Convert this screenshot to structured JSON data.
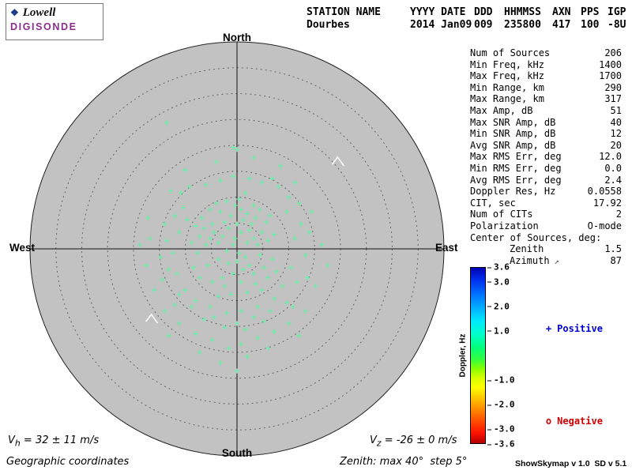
{
  "logo": {
    "brand_top": "Lowell",
    "brand_bottom": "DIGISONDE"
  },
  "header": {
    "columns": [
      {
        "label": "STATION NAME",
        "value": "Dourbes"
      },
      {
        "label": "YYYY DATE",
        "value": "2014 Jan09"
      },
      {
        "label": "DDD",
        "value": "009"
      },
      {
        "label": "HHMMSS",
        "value": "235800"
      },
      {
        "label": "AXN",
        "value": "417"
      },
      {
        "label": "PPS",
        "value": "100"
      },
      {
        "label": "IGP",
        "value": "-8U"
      }
    ]
  },
  "compass": {
    "north": "North",
    "south": "South",
    "east": "East",
    "west": "West"
  },
  "stats": {
    "rows": [
      {
        "label": "Num of Sources",
        "value": "206"
      },
      {
        "label": "Min Freq, kHz",
        "value": "1400"
      },
      {
        "label": "Max Freq, kHz",
        "value": "1700"
      },
      {
        "label": "Min Range, km",
        "value": "290"
      },
      {
        "label": "Max Range, km",
        "value": "317"
      },
      {
        "label": "Max Amp, dB",
        "value": "51"
      },
      {
        "label": "Max SNR Amp, dB",
        "value": "40"
      },
      {
        "label": "Min SNR Amp, dB",
        "value": "12"
      },
      {
        "label": "Avg SNR Amp, dB",
        "value": "20"
      },
      {
        "label": "Max RMS Err, deg",
        "value": "12.0"
      },
      {
        "label": "Min RMS Err, deg",
        "value": "0.0"
      },
      {
        "label": "Avg RMS Err, deg",
        "value": "2.4"
      },
      {
        "label": "Doppler Res, Hz",
        "value": "0.0558"
      },
      {
        "label": "CIT, sec",
        "value": "17.92"
      },
      {
        "label": "Num of CITs",
        "value": "2"
      },
      {
        "label": "Polarization",
        "value": "O-mode"
      },
      {
        "label": "Center of Sources, deg:",
        "value": ""
      },
      {
        "label": "Zenith",
        "value": "1.5",
        "indent": true
      },
      {
        "label": "Azimuth",
        "value": "87",
        "indent": true,
        "suffix": "↗"
      }
    ]
  },
  "legend": {
    "positive_marker": "+",
    "positive_label": "Positive",
    "positive_color": "#0000cc",
    "negative_marker": "o",
    "negative_label": "Negative",
    "negative_color": "#cc0000"
  },
  "footer": {
    "vh": {
      "symbol": "V",
      "sub": "h",
      "value": " = 32 ± 11 m/s"
    },
    "vz": {
      "symbol": "V",
      "sub": "z",
      "value": " = -26 ± 0 m/s"
    },
    "coords_label": "Geographic coordinates",
    "zenith_note": "Zenith: max 40°  step 5°",
    "app_version": "ShowSkymap v 1.0  SD v 5.1"
  },
  "chart_data": {
    "type": "scatter",
    "projection": "polar-skymap",
    "zenith_max_deg": 40,
    "zenith_step_deg": 5,
    "rings_deg": [
      5,
      10,
      15,
      20,
      25,
      30,
      35,
      40
    ],
    "num_sources": 206,
    "marker": "+",
    "marker_color": "#6ceea8",
    "disk_color": "#c2c2c2",
    "colorbar": {
      "label": "Doppler, Hz",
      "min": -3.6,
      "max": 3.6,
      "ticks": [
        3.6,
        3.0,
        2.0,
        1.0,
        -1.0,
        -2.0,
        -3.0,
        -3.6
      ]
    },
    "points_coordinates": "fraction of outer (40° zenith) radius; +x = East, +y = South",
    "points": [
      [
        -0.01,
        -0.05
      ],
      [
        0.02,
        -0.08
      ],
      [
        -0.04,
        -0.1
      ],
      [
        0.05,
        -0.03
      ],
      [
        -0.07,
        -0.06
      ],
      [
        0.0,
        -0.12
      ],
      [
        0.03,
        -0.14
      ],
      [
        -0.02,
        -0.02
      ],
      [
        0.06,
        -0.09
      ],
      [
        -0.09,
        -0.03
      ],
      [
        0.01,
        0.02
      ],
      [
        -0.05,
        0.01
      ],
      [
        0.08,
        -0.05
      ],
      [
        -0.11,
        -0.08
      ],
      [
        0.04,
        0.04
      ],
      [
        -0.03,
        -0.16
      ],
      [
        0.07,
        -0.12
      ],
      [
        -0.06,
        -0.13
      ],
      [
        0.1,
        -0.02
      ],
      [
        -0.13,
        -0.05
      ],
      [
        0.02,
        -0.19
      ],
      [
        -0.08,
        -0.18
      ],
      [
        0.05,
        -0.17
      ],
      [
        -0.01,
        -0.21
      ],
      [
        0.09,
        -0.15
      ],
      [
        -0.12,
        -0.12
      ],
      [
        0.12,
        -0.08
      ],
      [
        -0.15,
        -0.02
      ],
      [
        0.0,
        0.06
      ],
      [
        -0.04,
        0.07
      ],
      [
        0.06,
        0.08
      ],
      [
        -0.09,
        0.05
      ],
      [
        0.11,
        0.03
      ],
      [
        -0.14,
        0.08
      ],
      [
        0.03,
        0.1
      ],
      [
        -0.02,
        0.12
      ],
      [
        0.08,
        0.12
      ],
      [
        -0.07,
        0.14
      ],
      [
        0.13,
        0.09
      ],
      [
        -0.16,
        -0.1
      ],
      [
        0.15,
        -0.04
      ],
      [
        -0.18,
        -0.06
      ],
      [
        0.01,
        -0.24
      ],
      [
        -0.05,
        -0.23
      ],
      [
        0.08,
        -0.21
      ],
      [
        -0.1,
        -0.22
      ],
      [
        0.14,
        -0.13
      ],
      [
        -0.17,
        -0.15
      ],
      [
        0.16,
        -0.16
      ],
      [
        -0.2,
        -0.11
      ],
      [
        0.04,
        -0.27
      ],
      [
        -0.13,
        -0.19
      ],
      [
        0.11,
        -0.19
      ],
      [
        -0.22,
        -0.03
      ],
      [
        0.18,
        -0.07
      ],
      [
        -0.19,
        0.02
      ],
      [
        0.17,
        0.05
      ],
      [
        -0.21,
        0.09
      ],
      [
        0.02,
        0.16
      ],
      [
        -0.06,
        0.18
      ],
      [
        0.09,
        0.17
      ],
      [
        -0.12,
        0.16
      ],
      [
        0.15,
        0.14
      ],
      [
        -0.18,
        0.14
      ],
      [
        0.05,
        0.21
      ],
      [
        -0.03,
        0.22
      ],
      [
        0.12,
        0.2
      ],
      [
        -0.09,
        0.23
      ],
      [
        0.19,
        0.11
      ],
      [
        -0.24,
        -0.14
      ],
      [
        -0.28,
        -0.08
      ],
      [
        0.24,
        -0.18
      ],
      [
        -0.26,
        -0.2
      ],
      [
        0.28,
        -0.05
      ],
      [
        -0.31,
        0.02
      ],
      [
        0.26,
        0.09
      ],
      [
        -0.29,
        0.12
      ],
      [
        0.22,
        0.18
      ],
      [
        -0.25,
        0.2
      ],
      [
        0.18,
        0.24
      ],
      [
        -0.2,
        0.25
      ],
      [
        0.1,
        0.28
      ],
      [
        -0.13,
        0.28
      ],
      [
        0.02,
        0.3
      ],
      [
        -0.05,
        0.31
      ],
      [
        0.25,
        -0.25
      ],
      [
        -0.3,
        -0.16
      ],
      [
        0.31,
        -0.12
      ],
      [
        -0.34,
        -0.04
      ],
      [
        0.33,
        0.03
      ],
      [
        -0.27,
        -0.27
      ],
      [
        0.2,
        -0.3
      ],
      [
        -0.15,
        -0.31
      ],
      [
        0.12,
        -0.32
      ],
      [
        -0.08,
        -0.33
      ],
      [
        0.06,
        -0.34
      ],
      [
        -0.02,
        -0.35
      ],
      [
        0.29,
        0.16
      ],
      [
        -0.33,
        0.1
      ],
      [
        0.16,
        0.3
      ],
      [
        -0.22,
        0.28
      ],
      [
        0.08,
        0.33
      ],
      [
        -0.11,
        0.33
      ],
      [
        0.0,
        0.36
      ],
      [
        -0.28,
        0.22
      ],
      [
        0.24,
        0.26
      ],
      [
        -0.35,
        -0.12
      ],
      [
        0.35,
        -0.08
      ],
      [
        -0.37,
        0.04
      ],
      [
        0.3,
        -0.22
      ],
      [
        -0.23,
        -0.3
      ],
      [
        0.17,
        -0.34
      ],
      [
        -0.36,
        0.15
      ],
      [
        0.34,
        0.14
      ],
      [
        -0.3,
        0.27
      ],
      [
        0.27,
        0.28
      ],
      [
        -0.16,
        0.34
      ],
      [
        0.13,
        0.35
      ],
      [
        -0.06,
        0.38
      ],
      [
        0.04,
        0.39
      ],
      [
        -0.42,
        -0.05
      ],
      [
        0.41,
        -0.02
      ],
      [
        -0.44,
        0.08
      ],
      [
        0.38,
        0.18
      ],
      [
        -0.4,
        0.2
      ],
      [
        0.33,
        0.3
      ],
      [
        -0.35,
        0.3
      ],
      [
        0.25,
        0.36
      ],
      [
        -0.28,
        0.36
      ],
      [
        0.18,
        0.4
      ],
      [
        -0.2,
        0.41
      ],
      [
        0.1,
        0.43
      ],
      [
        -0.12,
        0.44
      ],
      [
        0.02,
        0.46
      ],
      [
        -0.04,
        0.48
      ],
      [
        0.28,
        -0.32
      ],
      [
        -0.32,
        -0.28
      ],
      [
        0.36,
        -0.18
      ],
      [
        -0.43,
        -0.15
      ],
      [
        0.44,
        0.08
      ],
      [
        -0.47,
        -0.02
      ],
      [
        0.21,
        -0.4
      ],
      [
        -0.25,
        -0.38
      ],
      [
        0.08,
        -0.44
      ],
      [
        -0.1,
        -0.42
      ],
      [
        0.0,
        -0.48
      ],
      [
        -0.34,
        -0.61
      ],
      [
        -0.02,
        -0.49
      ],
      [
        0.3,
        0.42
      ],
      [
        -0.33,
        0.42
      ],
      [
        0.15,
        0.48
      ],
      [
        -0.18,
        0.5
      ],
      [
        0.05,
        0.52
      ],
      [
        -0.08,
        0.55
      ],
      [
        0.0,
        0.59
      ]
    ],
    "direction_marks": [
      [
        0.49,
        -0.42
      ],
      [
        -0.41,
        0.34
      ]
    ]
  }
}
